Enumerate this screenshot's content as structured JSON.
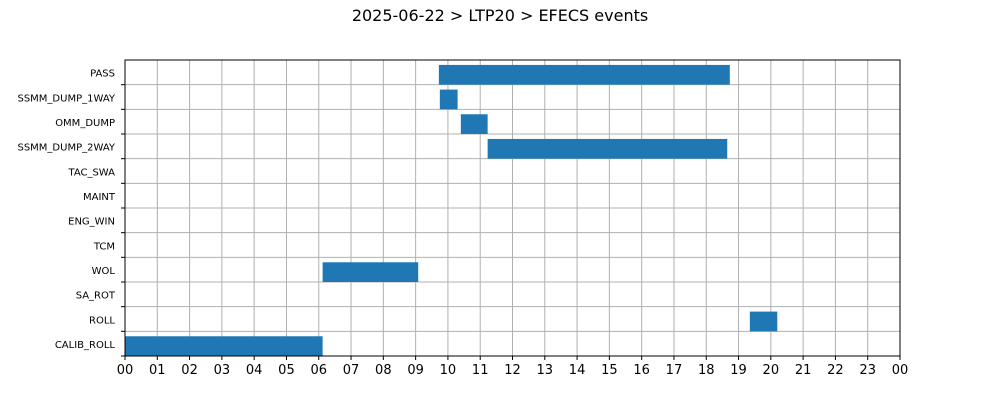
{
  "chart_data": {
    "type": "gantt",
    "title": "2025-06-22 > LTP20 > EFECS events",
    "xlabel": "",
    "ylabel": "",
    "xlim": [
      0,
      24
    ],
    "x_unit": "hour of day",
    "x_ticks": [
      "00",
      "01",
      "02",
      "03",
      "04",
      "05",
      "06",
      "07",
      "08",
      "09",
      "10",
      "11",
      "12",
      "13",
      "14",
      "15",
      "16",
      "17",
      "18",
      "19",
      "20",
      "21",
      "22",
      "23",
      "00"
    ],
    "categories": [
      "PASS",
      "SSMM_DUMP_1WAY",
      "OMM_DUMP",
      "SSMM_DUMP_2WAY",
      "TAC_SWA",
      "MAINT",
      "ENG_WIN",
      "TCM",
      "WOL",
      "SA_ROT",
      "ROLL",
      "CALIB_ROLL"
    ],
    "grid": true,
    "legend": "none",
    "bar_color": "#1f77b4",
    "events": [
      {
        "category": "PASS",
        "start": 9.72,
        "end": 18.73
      },
      {
        "category": "SSMM_DUMP_1WAY",
        "start": 9.75,
        "end": 10.3
      },
      {
        "category": "OMM_DUMP",
        "start": 10.4,
        "end": 11.23
      },
      {
        "category": "SSMM_DUMP_2WAY",
        "start": 11.23,
        "end": 18.65
      },
      {
        "category": "WOL",
        "start": 6.12,
        "end": 9.08
      },
      {
        "category": "ROLL",
        "start": 19.35,
        "end": 20.2
      },
      {
        "category": "CALIB_ROLL",
        "start": 0.0,
        "end": 6.12
      }
    ]
  }
}
